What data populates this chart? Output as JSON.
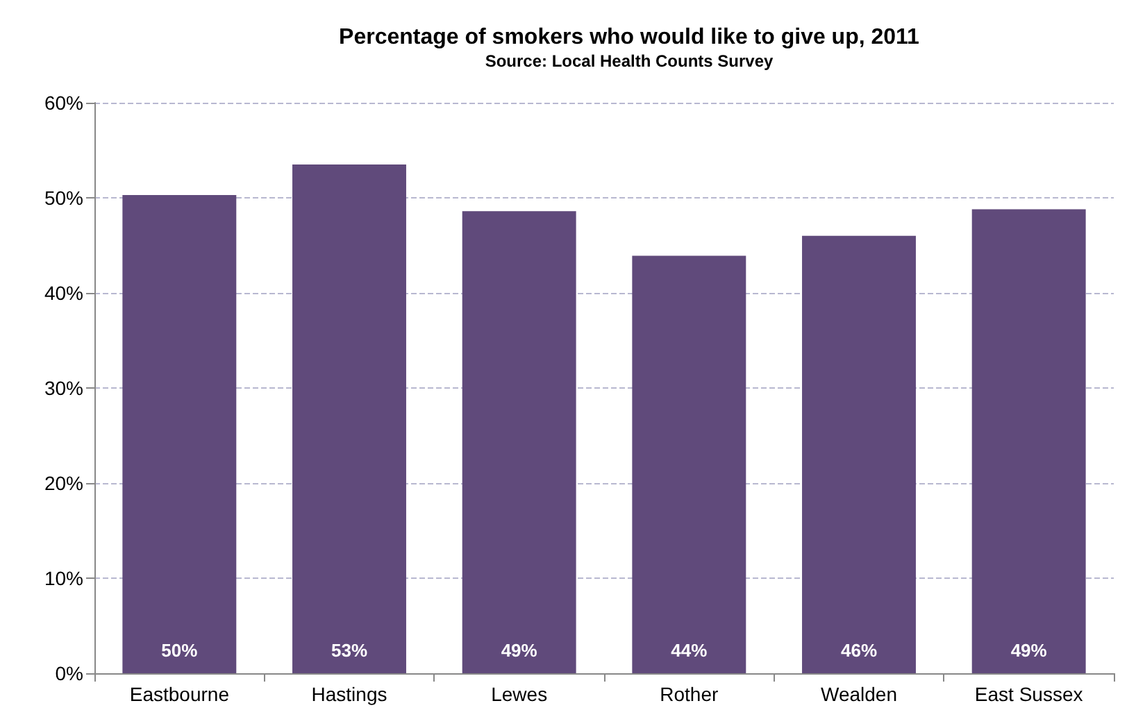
{
  "chart_data": {
    "type": "bar",
    "title": "Percentage of smokers who would like to give up, 2011",
    "annotations": [
      "Source: Local Health Counts Survey"
    ],
    "categories": [
      "Eastbourne",
      "Hastings",
      "Lewes",
      "Rother",
      "Wealden",
      "East Sussex"
    ],
    "values": [
      50.3,
      53.5,
      48.6,
      43.9,
      46.0,
      48.8
    ],
    "value_labels": [
      "50%",
      "53%",
      "49%",
      "44%",
      "46%",
      "49%"
    ],
    "color": "#604a7b",
    "ylim": [
      0,
      60
    ],
    "yticks": [
      {
        "value": 0,
        "label": "0%"
      },
      {
        "value": 10,
        "label": "10%"
      },
      {
        "value": 20,
        "label": "20%"
      },
      {
        "value": 30,
        "label": "30%"
      },
      {
        "value": 40,
        "label": "40%"
      },
      {
        "value": 50,
        "label": "50%"
      },
      {
        "value": 60,
        "label": "60%"
      }
    ],
    "grid": "y"
  }
}
